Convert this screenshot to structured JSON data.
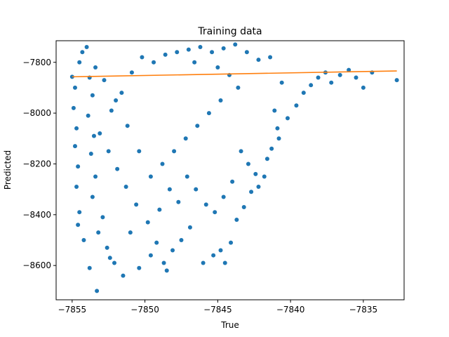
{
  "chart_data": {
    "type": "scatter",
    "title": "Training data",
    "xlabel": "True",
    "ylabel": "Predicted",
    "xlim": [
      -7856.1,
      -7832.2
    ],
    "ylim": [
      -8735,
      -7715
    ],
    "xticks": [
      -7855,
      -7850,
      -7845,
      -7840,
      -7835
    ],
    "yticks": [
      -8600,
      -8400,
      -8200,
      -8000,
      -7800
    ],
    "xtick_labels": [
      "−7855",
      "−7850",
      "−7845",
      "−7840",
      "−7835"
    ],
    "ytick_labels": [
      "−8600",
      "−8400",
      "−8200",
      "−8000",
      "−7800"
    ],
    "grid": false,
    "colors": {
      "points": "#1f77b4",
      "fit_line": "#ff7f0e"
    },
    "fit_line": {
      "x": [
        -7855,
        -7832.7
      ],
      "y": [
        -7857,
        -7834
      ]
    },
    "series": [
      {
        "kind": "scatter",
        "points": [
          [
            -7855,
            -7857
          ],
          [
            -7854.8,
            -7900
          ],
          [
            -7854.9,
            -7980
          ],
          [
            -7854.7,
            -8060
          ],
          [
            -7854.8,
            -8130
          ],
          [
            -7854.6,
            -8210
          ],
          [
            -7854.7,
            -8290
          ],
          [
            -7854.5,
            -8390
          ],
          [
            -7854.6,
            -8440
          ],
          [
            -7854.5,
            -7800
          ],
          [
            -7854.3,
            -7760
          ],
          [
            -7854.0,
            -7740
          ],
          [
            -7853.8,
            -7860
          ],
          [
            -7853.6,
            -7930
          ],
          [
            -7853.9,
            -8010
          ],
          [
            -7853.5,
            -8090
          ],
          [
            -7853.7,
            -8160
          ],
          [
            -7853.4,
            -8250
          ],
          [
            -7853.6,
            -8330
          ],
          [
            -7853.2,
            -8470
          ],
          [
            -7854.2,
            -8500
          ],
          [
            -7853.8,
            -8610
          ],
          [
            -7853.3,
            -8700
          ],
          [
            -7852.6,
            -8530
          ],
          [
            -7852.4,
            -8570
          ],
          [
            -7852.9,
            -8410
          ],
          [
            -7852.1,
            -8590
          ],
          [
            -7851.5,
            -8640
          ],
          [
            -7851.0,
            -8470
          ],
          [
            -7850.4,
            -8610
          ],
          [
            -7849.6,
            -8560
          ],
          [
            -7849.2,
            -8510
          ],
          [
            -7848.7,
            -8590
          ],
          [
            -7848.5,
            -8620
          ],
          [
            -7848.1,
            -8540
          ],
          [
            -7847.5,
            -8500
          ],
          [
            -7846.9,
            -8450
          ],
          [
            -7846.0,
            -8590
          ],
          [
            -7845.3,
            -8560
          ],
          [
            -7844.8,
            -8540
          ],
          [
            -7844.5,
            -8590
          ],
          [
            -7844.1,
            -8510
          ],
          [
            -7843.7,
            -8420
          ],
          [
            -7843.2,
            -8370
          ],
          [
            -7842.7,
            -8310
          ],
          [
            -7842.2,
            -8290
          ],
          [
            -7841.8,
            -8250
          ],
          [
            -7841.3,
            -8140
          ],
          [
            -7840.8,
            -8100
          ],
          [
            -7840.2,
            -8020
          ],
          [
            -7839.6,
            -7970
          ],
          [
            -7839.1,
            -7920
          ],
          [
            -7838.6,
            -7890
          ],
          [
            -7838.1,
            -7860
          ],
          [
            -7837.6,
            -7840
          ],
          [
            -7837.2,
            -7880
          ],
          [
            -7836.6,
            -7850
          ],
          [
            -7836.0,
            -7830
          ],
          [
            -7835.5,
            -7860
          ],
          [
            -7835.0,
            -7900
          ],
          [
            -7834.4,
            -7840
          ],
          [
            -7832.7,
            -7870
          ],
          [
            -7840.6,
            -7880
          ],
          [
            -7841.1,
            -7990
          ],
          [
            -7840.9,
            -8060
          ],
          [
            -7841.6,
            -8180
          ],
          [
            -7842.4,
            -8240
          ],
          [
            -7842.9,
            -8200
          ],
          [
            -7843.4,
            -8150
          ],
          [
            -7844.0,
            -8270
          ],
          [
            -7844.6,
            -8330
          ],
          [
            -7845.2,
            -8390
          ],
          [
            -7845.8,
            -8360
          ],
          [
            -7846.5,
            -8300
          ],
          [
            -7847.1,
            -8250
          ],
          [
            -7847.7,
            -8350
          ],
          [
            -7848.3,
            -8300
          ],
          [
            -7849.0,
            -8380
          ],
          [
            -7849.8,
            -8430
          ],
          [
            -7850.6,
            -8360
          ],
          [
            -7851.3,
            -8290
          ],
          [
            -7851.9,
            -8220
          ],
          [
            -7852.5,
            -8150
          ],
          [
            -7853.1,
            -8080
          ],
          [
            -7852.3,
            -7990
          ],
          [
            -7851.6,
            -7920
          ],
          [
            -7850.9,
            -7840
          ],
          [
            -7850.2,
            -7780
          ],
          [
            -7849.4,
            -7800
          ],
          [
            -7848.6,
            -7770
          ],
          [
            -7847.8,
            -7760
          ],
          [
            -7847.0,
            -7750
          ],
          [
            -7846.2,
            -7740
          ],
          [
            -7845.4,
            -7760
          ],
          [
            -7844.6,
            -7745
          ],
          [
            -7843.8,
            -7730
          ],
          [
            -7843.0,
            -7760
          ],
          [
            -7842.2,
            -7790
          ],
          [
            -7841.4,
            -7780
          ],
          [
            -7846.6,
            -7800
          ],
          [
            -7845.0,
            -7820
          ],
          [
            -7844.2,
            -7850
          ],
          [
            -7843.6,
            -7900
          ],
          [
            -7844.8,
            -7950
          ],
          [
            -7845.6,
            -8000
          ],
          [
            -7846.4,
            -8050
          ],
          [
            -7847.2,
            -8100
          ],
          [
            -7848.0,
            -8150
          ],
          [
            -7848.8,
            -8200
          ],
          [
            -7849.6,
            -8250
          ],
          [
            -7850.4,
            -8150
          ],
          [
            -7851.2,
            -8050
          ],
          [
            -7852.0,
            -7950
          ],
          [
            -7852.8,
            -7870
          ],
          [
            -7853.4,
            -7820
          ]
        ]
      }
    ]
  }
}
